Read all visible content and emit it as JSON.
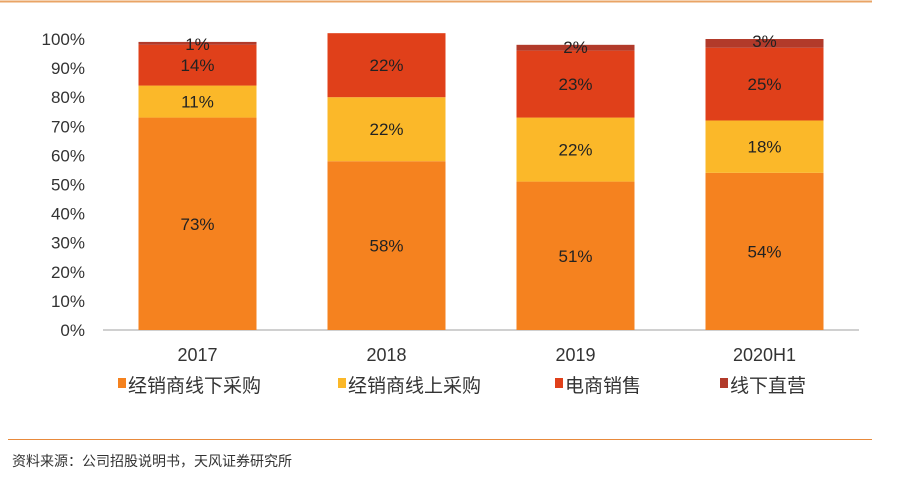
{
  "chart_data": {
    "type": "bar",
    "stacked": true,
    "categories": [
      "2017",
      "2018",
      "2019",
      "2020H1"
    ],
    "series": [
      {
        "name": "经销商线下采购",
        "values": [
          73,
          58,
          51,
          54
        ],
        "color": "#F5821F"
      },
      {
        "name": "经销商线上采购",
        "values": [
          11,
          22,
          22,
          18
        ],
        "color": "#FBB829"
      },
      {
        "name": "电商销售",
        "values": [
          14,
          22,
          23,
          25
        ],
        "color": "#E0401A"
      },
      {
        "name": "线下直营",
        "values": [
          1,
          0,
          2,
          3
        ],
        "color": "#B23A2A"
      }
    ],
    "data_labels": [
      [
        "73%",
        "58%",
        "51%",
        "54%"
      ],
      [
        "11%",
        "22%",
        "22%",
        "18%"
      ],
      [
        "14%",
        "22%",
        "23%",
        "25%"
      ],
      [
        "1%",
        "",
        "2%",
        "3%"
      ]
    ],
    "yticks": [
      "0%",
      "10%",
      "20%",
      "30%",
      "40%",
      "50%",
      "60%",
      "70%",
      "80%",
      "90%",
      "100%"
    ],
    "ylim": [
      0,
      100
    ],
    "grid": false,
    "legend": "bottom"
  },
  "source": "资料来源：公司招股说明书，天风证券研究所",
  "colors": {
    "top_rule": "#E9A466",
    "bottom_rule": "#E88A3C"
  }
}
